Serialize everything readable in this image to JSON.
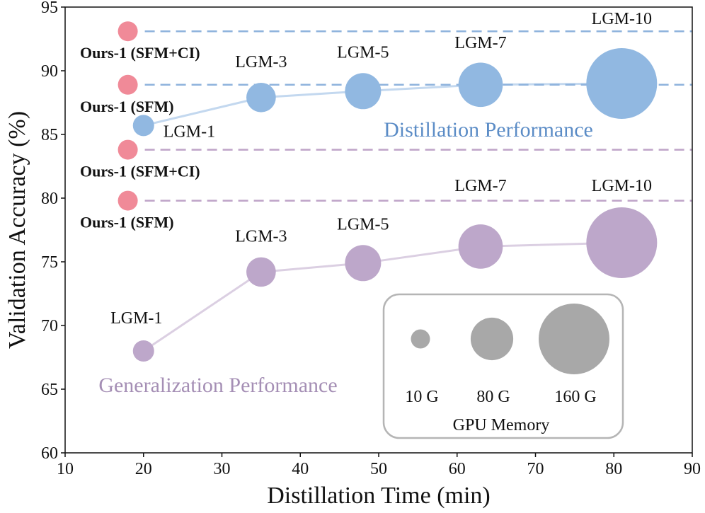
{
  "chart_data": {
    "type": "scatter",
    "xlabel": "Distillation Time (min)",
    "ylabel": "Validation Accuracy (%)",
    "xlim": [
      10,
      90
    ],
    "ylim": [
      60,
      95
    ],
    "xticks": [
      "10",
      "20",
      "30",
      "40",
      "50",
      "60",
      "70",
      "80",
      "90"
    ],
    "yticks": [
      "60",
      "65",
      "70",
      "75",
      "80",
      "85",
      "90",
      "95"
    ],
    "grid": false,
    "series": [
      {
        "name": "Distillation Performance",
        "color": "#91b8e1",
        "points": [
          {
            "label": "LGM-1",
            "x": 20,
            "y": 85.7,
            "memory": 10
          },
          {
            "label": "LGM-3",
            "x": 35,
            "y": 87.9,
            "memory": 35
          },
          {
            "label": "LGM-5",
            "x": 48,
            "y": 88.4,
            "memory": 55
          },
          {
            "label": "LGM-7",
            "x": 63,
            "y": 88.9,
            "memory": 80
          },
          {
            "label": "LGM-10",
            "x": 81,
            "y": 89.0,
            "memory": 160
          }
        ]
      },
      {
        "name": "Generalization Performance",
        "color": "#bda7ca",
        "points": [
          {
            "label": "LGM-1",
            "x": 20,
            "y": 68.0,
            "memory": 10
          },
          {
            "label": "LGM-3",
            "x": 35,
            "y": 74.2,
            "memory": 35
          },
          {
            "label": "LGM-5",
            "x": 48,
            "y": 74.9,
            "memory": 55
          },
          {
            "label": "LGM-7",
            "x": 63,
            "y": 76.2,
            "memory": 80
          },
          {
            "label": "LGM-10",
            "x": 81,
            "y": 76.5,
            "memory": 160
          }
        ]
      }
    ],
    "reference_lines": [
      {
        "label": "Ours-1 (SFM+CI)",
        "x": 18,
        "y": 93.1,
        "color": "#8fb3dd"
      },
      {
        "label": "Ours-1 (SFM)",
        "x": 18,
        "y": 88.9,
        "color": "#8fb3dd"
      },
      {
        "label": "Ours-1 (SFM+CI)",
        "x": 18,
        "y": 83.8,
        "color": "#bfa3c8"
      },
      {
        "label": "Ours-1 (SFM)",
        "x": 18,
        "y": 79.8,
        "color": "#bfa3c8"
      }
    ],
    "reference_marker_color": "#f08a98",
    "size_legend": {
      "title": "GPU Memory",
      "entries": [
        {
          "label": "10 G",
          "memory": 10
        },
        {
          "label": "80 G",
          "memory": 80
        },
        {
          "label": "160 G",
          "memory": 160
        }
      ],
      "color": "#a8a8a8"
    }
  }
}
